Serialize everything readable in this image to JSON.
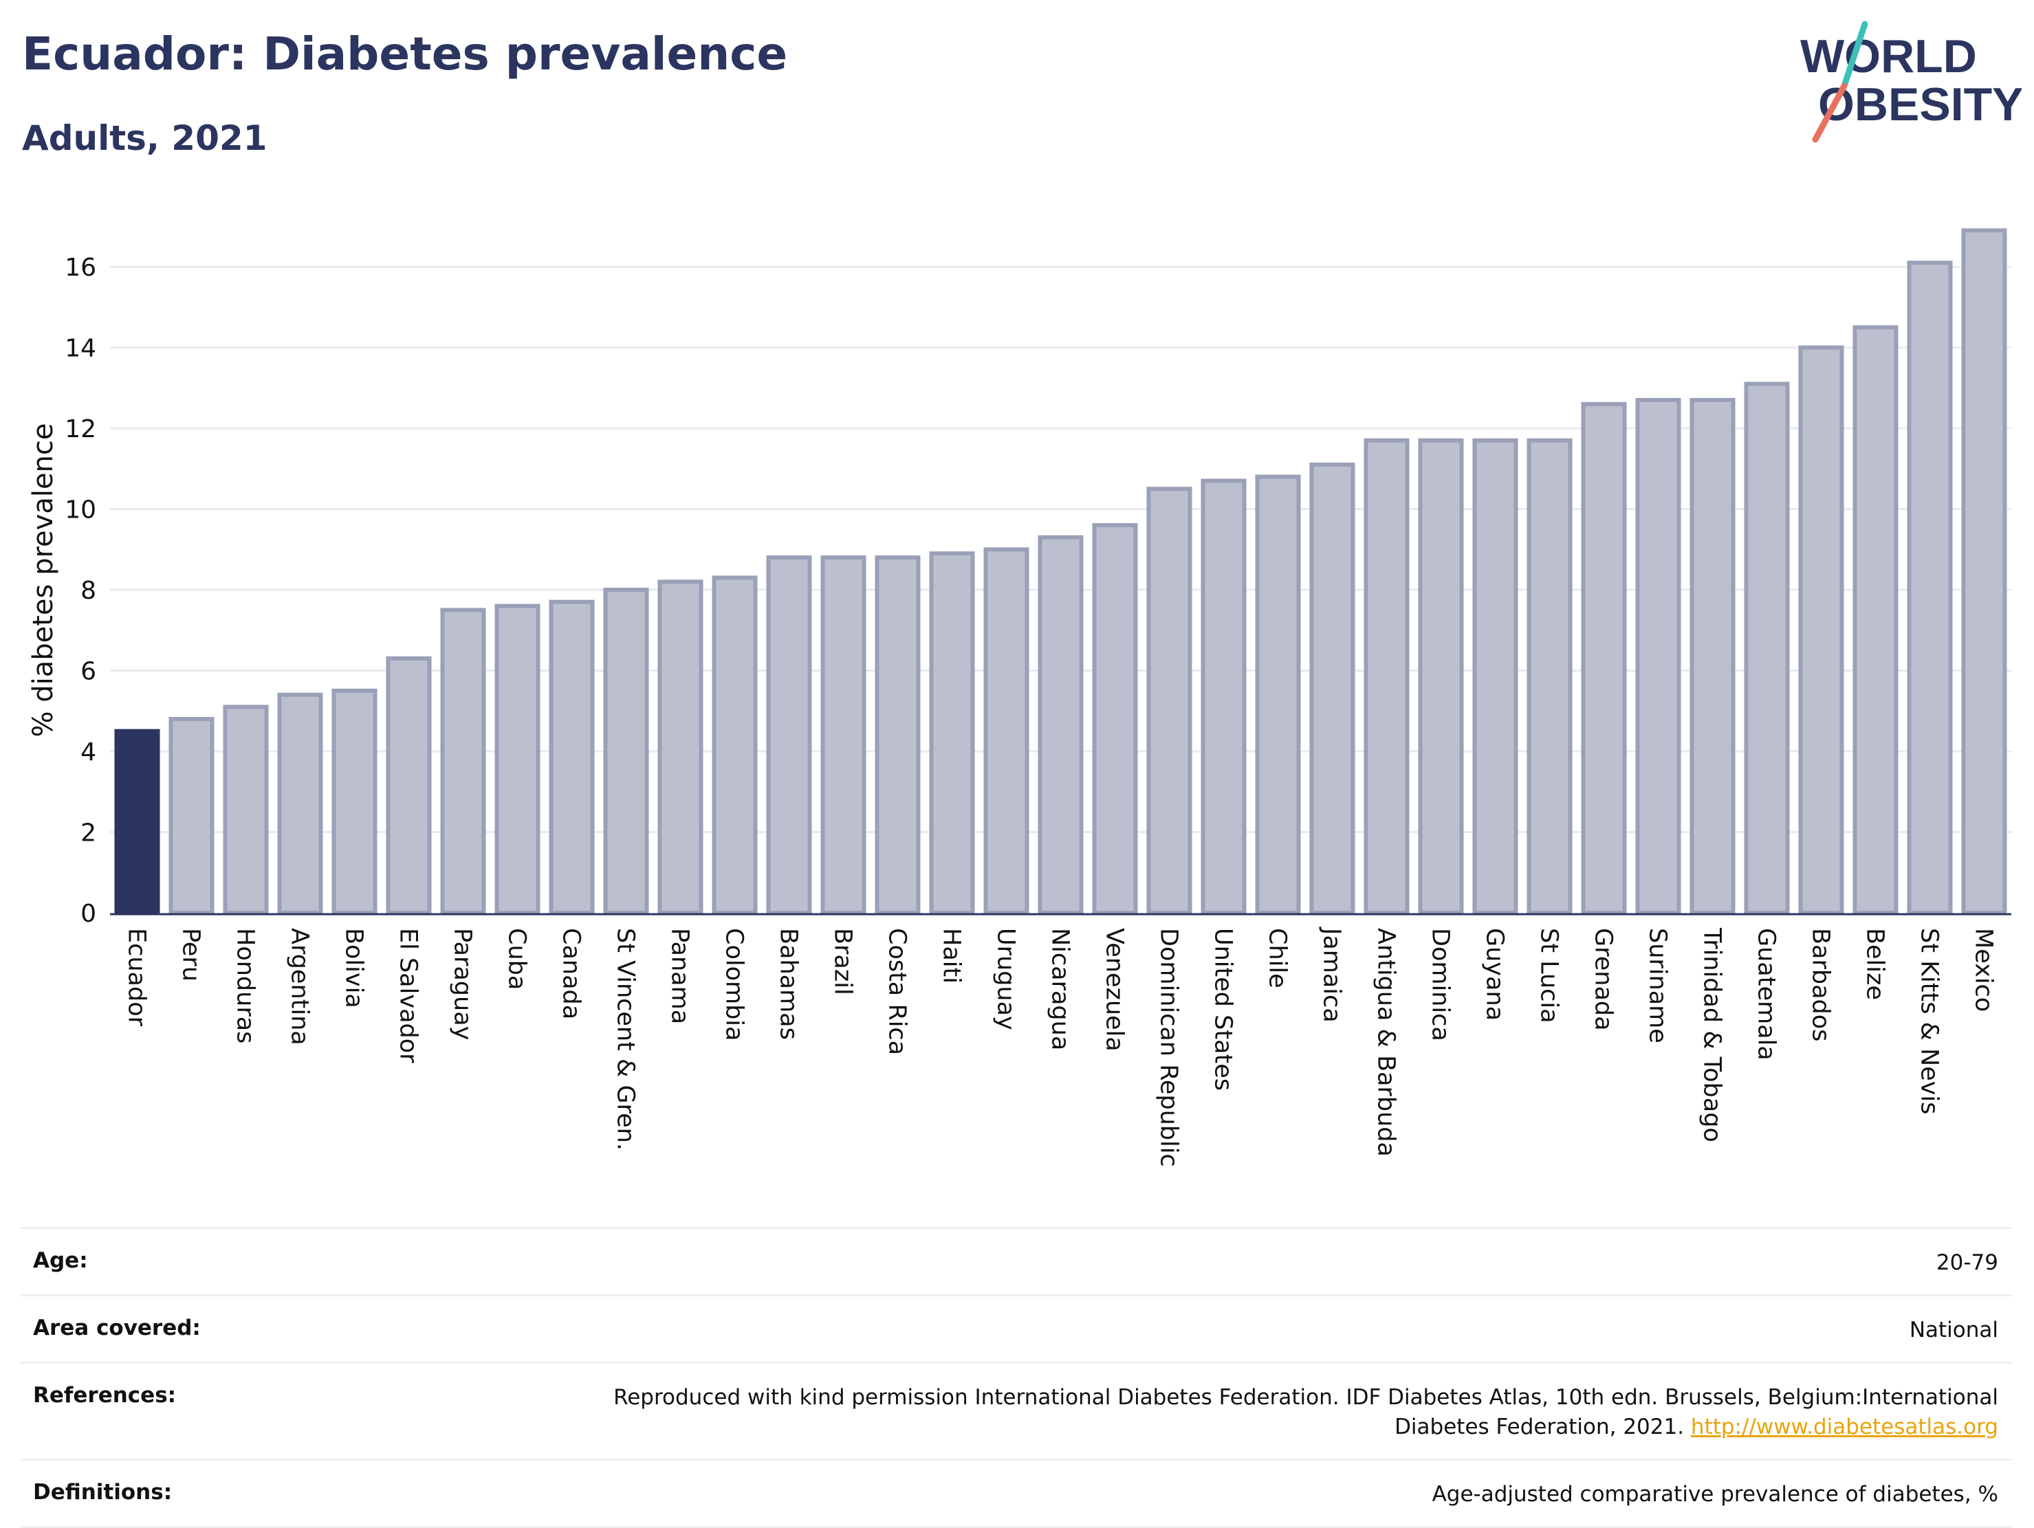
{
  "header": {
    "title": "Ecuador: Diabetes prevalence",
    "subtitle": "Adults, 2021",
    "logo_line1": "WORLD",
    "logo_line2": "OBESITY"
  },
  "colors": {
    "highlight_bar": "#2c3560",
    "bar_fill": "#bcc0ce",
    "bar_stroke": "#9aa0b8",
    "grid": "#e8eaf0",
    "axis": "#2c3560",
    "logo_navy": "#2c3560",
    "logo_teal": "#3cc0b8",
    "logo_coral": "#e8705e",
    "link": "#e8a40c"
  },
  "chart_data": {
    "type": "bar",
    "ylabel": "% diabetes prevalence",
    "xlabel": "",
    "ylim": [
      0,
      17.5
    ],
    "yticks": [
      0,
      2,
      4,
      6,
      8,
      10,
      12,
      14,
      16
    ],
    "grid": true,
    "highlight": "Ecuador",
    "categories": [
      "Ecuador",
      "Peru",
      "Honduras",
      "Argentina",
      "Bolivia",
      "El Salvador",
      "Paraguay",
      "Cuba",
      "Canada",
      "St Vincent & Gren.",
      "Panama",
      "Colombia",
      "Bahamas",
      "Brazil",
      "Costa Rica",
      "Haiti",
      "Uruguay",
      "Nicaragua",
      "Venezuela",
      "Dominican Republic",
      "United States",
      "Chile",
      "Jamaica",
      "Antigua & Barbuda",
      "Dominica",
      "Guyana",
      "St Lucia",
      "Grenada",
      "Suriname",
      "Trinidad & Tobago",
      "Guatemala",
      "Barbados",
      "Belize",
      "St Kitts & Nevis",
      "Mexico"
    ],
    "values": [
      4.5,
      4.8,
      5.1,
      5.4,
      5.5,
      6.3,
      7.5,
      7.6,
      7.7,
      8.0,
      8.2,
      8.3,
      8.8,
      8.8,
      8.8,
      8.9,
      9.0,
      9.3,
      9.6,
      10.5,
      10.7,
      10.8,
      11.1,
      11.7,
      11.7,
      11.7,
      11.7,
      12.6,
      12.7,
      12.7,
      13.1,
      14.0,
      14.5,
      16.1,
      16.9
    ]
  },
  "info": {
    "age_label": "Age:",
    "age_value": "20-79",
    "area_label": "Area covered:",
    "area_value": "National",
    "references_label": "References:",
    "references_value": "Reproduced with kind permission International Diabetes Federation.  IDF Diabetes Atlas, 10th edn. Brussels, Belgium:International Diabetes Federation, 2021.",
    "references_link": "http://www.diabetesatlas.org",
    "definitions_label": "Definitions:",
    "definitions_value": "Age-adjusted comparative prevalence of diabetes, %"
  }
}
